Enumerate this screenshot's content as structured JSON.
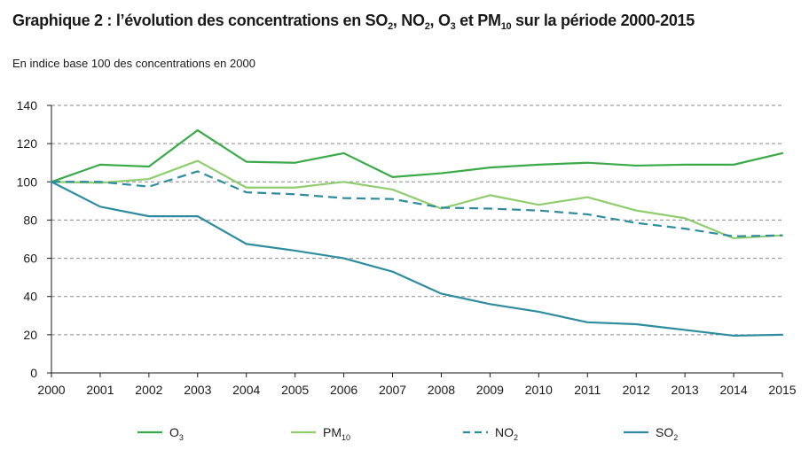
{
  "title_parts": {
    "p1": "Graphique 2 : l’évolution des concentrations en SO",
    "s1": "2",
    "p2": ", NO",
    "s2": "2",
    "p3": ", O",
    "s3": "3",
    "p4": " et PM",
    "s4": "10",
    "p5": " sur la période 2000-2015"
  },
  "subtitle": "En indice base 100 des concentrations en 2000",
  "colors": {
    "O3": "#3aaa48",
    "PM10": "#8fcd6f",
    "NO2": "#2e8c9f",
    "SO2": "#2e8c9f",
    "grid": "#8a8a8a",
    "axis": "#1a1a1a"
  },
  "chart_data": {
    "type": "line",
    "x": [
      2000,
      2001,
      2002,
      2003,
      2004,
      2005,
      2006,
      2007,
      2008,
      2009,
      2010,
      2011,
      2012,
      2013,
      2014,
      2015
    ],
    "ylim": [
      0,
      140
    ],
    "yticks": [
      0,
      20,
      40,
      60,
      80,
      100,
      120,
      140
    ],
    "grid": "horizontal dashed",
    "legend_position": "bottom",
    "series": [
      {
        "key": "O3",
        "label": "O",
        "label_sub": "3",
        "style": "solid",
        "values": [
          100,
          109,
          108,
          127,
          110.5,
          110,
          115,
          102.5,
          104.5,
          107.5,
          109,
          110,
          108.5,
          109,
          109,
          115
        ]
      },
      {
        "key": "PM10",
        "label": "PM",
        "label_sub": "10",
        "style": "solid",
        "values": [
          100,
          99.5,
          101.5,
          111,
          97,
          97,
          100,
          96,
          86,
          93,
          88,
          92,
          85,
          81,
          70.5,
          72
        ]
      },
      {
        "key": "NO2",
        "label": "NO",
        "label_sub": "2",
        "style": "dashed",
        "values": [
          100,
          100,
          97.5,
          105.5,
          94.5,
          93.5,
          91.5,
          91,
          86.5,
          86,
          85,
          83,
          78.5,
          75.5,
          71.5,
          72
        ]
      },
      {
        "key": "SO2",
        "label": "SO",
        "label_sub": "2",
        "style": "solid",
        "values": [
          100,
          87,
          82,
          82,
          67.5,
          64,
          60,
          53,
          41.5,
          36,
          32,
          26.5,
          25.5,
          22.5,
          19.5,
          20
        ]
      }
    ]
  }
}
